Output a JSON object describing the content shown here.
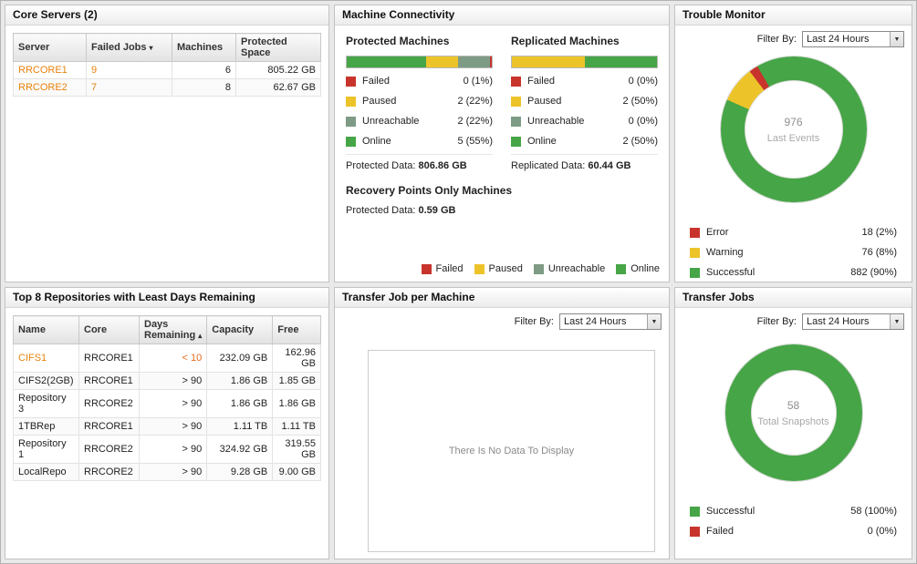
{
  "colors": {
    "failed": "#c8342c",
    "paused": "#edc32a",
    "unreachable": "#7e9b85",
    "online": "#46a546"
  },
  "panels": {
    "core_servers": {
      "title": "Core Servers (2)",
      "columns": [
        {
          "label": "Server"
        },
        {
          "label": "Failed Jobs",
          "sort": "desc"
        },
        {
          "label": "Machines"
        },
        {
          "label": "Protected Space"
        }
      ],
      "rows": [
        {
          "server": "RRCORE1",
          "failed_jobs": "9",
          "machines": "6",
          "protected_space": "805.22 GB"
        },
        {
          "server": "RRCORE2",
          "failed_jobs": "7",
          "machines": "8",
          "protected_space": "62.67 GB"
        }
      ]
    },
    "machine_connectivity": {
      "title": "Machine Connectivity",
      "protected": {
        "heading": "Protected Machines",
        "bar": [
          {
            "color_key": "online",
            "pct": 55
          },
          {
            "color_key": "paused",
            "pct": 22
          },
          {
            "color_key": "unreachable",
            "pct": 22
          },
          {
            "color_key": "failed",
            "pct": 1
          }
        ],
        "legend": [
          {
            "label": "Failed",
            "value": "0 (1%)",
            "color_key": "failed"
          },
          {
            "label": "Paused",
            "value": "2 (22%)",
            "color_key": "paused"
          },
          {
            "label": "Unreachable",
            "value": "2 (22%)",
            "color_key": "unreachable"
          },
          {
            "label": "Online",
            "value": "5 (55%)",
            "color_key": "online"
          }
        ],
        "data_label": "Protected Data:",
        "data_value": "806.86 GB"
      },
      "replicated": {
        "heading": "Replicated Machines",
        "bar": [
          {
            "color_key": "paused",
            "pct": 50
          },
          {
            "color_key": "online",
            "pct": 50
          }
        ],
        "legend": [
          {
            "label": "Failed",
            "value": "0 (0%)",
            "color_key": "failed"
          },
          {
            "label": "Paused",
            "value": "2 (50%)",
            "color_key": "paused"
          },
          {
            "label": "Unreachable",
            "value": "0 (0%)",
            "color_key": "unreachable"
          },
          {
            "label": "Online",
            "value": "2 (50%)",
            "color_key": "online"
          }
        ],
        "data_label": "Replicated Data:",
        "data_value": "60.44 GB"
      },
      "recovery_points": {
        "heading": "Recovery Points Only Machines",
        "data_label": "Protected Data:",
        "data_value": "0.59 GB"
      },
      "footer_legend": [
        {
          "label": "Failed",
          "color_key": "failed"
        },
        {
          "label": "Paused",
          "color_key": "paused"
        },
        {
          "label": "Unreachable",
          "color_key": "unreachable"
        },
        {
          "label": "Online",
          "color_key": "online"
        }
      ]
    },
    "trouble_monitor": {
      "title": "Trouble Monitor",
      "filter_label": "Filter By:",
      "filter_value": "Last 24 Hours",
      "chart": {
        "type": "donut",
        "center_value": "976",
        "center_label": "Last Events",
        "segments": [
          {
            "label": "Error",
            "count": 18,
            "pct": 2,
            "display": "18 (2%)",
            "color_key": "failed"
          },
          {
            "label": "Warning",
            "count": 76,
            "pct": 8,
            "display": "76 (8%)",
            "color_key": "paused"
          },
          {
            "label": "Successful",
            "count": 882,
            "pct": 90,
            "display": "882 (90%)",
            "color_key": "online"
          }
        ]
      }
    },
    "repositories": {
      "title": "Top 8 Repositories with Least Days Remaining",
      "columns": [
        {
          "label": "Name"
        },
        {
          "label": "Core"
        },
        {
          "label": "Days Remaining",
          "sort": "asc"
        },
        {
          "label": "Capacity"
        },
        {
          "label": "Free"
        }
      ],
      "rows": [
        {
          "name": "CIFS1",
          "core": "RRCORE1",
          "days_remaining": "< 10",
          "capacity": "232.09 GB",
          "free": "162.96 GB"
        },
        {
          "name": "CIFS2(2GB)",
          "core": "RRCORE1",
          "days_remaining": "> 90",
          "capacity": "1.86 GB",
          "free": "1.85 GB"
        },
        {
          "name": "Repository 3",
          "core": "RRCORE2",
          "days_remaining": "> 90",
          "capacity": "1.86 GB",
          "free": "1.86 GB"
        },
        {
          "name": "1TBRep",
          "core": "RRCORE1",
          "days_remaining": "> 90",
          "capacity": "1.11 TB",
          "free": "1.11 TB"
        },
        {
          "name": "Repository 1",
          "core": "RRCORE2",
          "days_remaining": "> 90",
          "capacity": "324.92 GB",
          "free": "319.55 GB"
        },
        {
          "name": "LocalRepo",
          "core": "RRCORE2",
          "days_remaining": "> 90",
          "capacity": "9.28 GB",
          "free": "9.00 GB"
        }
      ]
    },
    "transfer_job_per_machine": {
      "title": "Transfer Job per Machine",
      "filter_label": "Filter By:",
      "filter_value": "Last 24 Hours",
      "empty_message": "There Is No Data To Display"
    },
    "transfer_jobs": {
      "title": "Transfer Jobs",
      "filter_label": "Filter By:",
      "filter_value": "Last 24 Hours",
      "chart": {
        "type": "donut",
        "center_value": "58",
        "center_label": "Total Snapshots",
        "segments": [
          {
            "label": "Successful",
            "count": 58,
            "pct": 100,
            "display": "58 (100%)",
            "color_key": "online"
          },
          {
            "label": "Failed",
            "count": 0,
            "pct": 0,
            "display": "0 (0%)",
            "color_key": "failed"
          }
        ]
      }
    }
  }
}
